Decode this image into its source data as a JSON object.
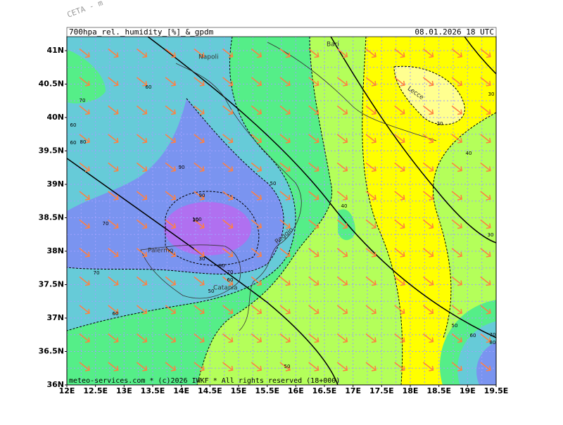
{
  "header": {
    "model": "CETA - m",
    "title": "700hpa_rel._humidity_[%]_&_gpdm",
    "valid": "08.01.2026 18 UTC"
  },
  "x_axis": {
    "labels": [
      "12E",
      "12.5E",
      "13E",
      "13.5E",
      "14E",
      "14.5E",
      "15E",
      "15.5E",
      "16E",
      "16.5E",
      "17E",
      "17.5E",
      "18E",
      "18.5E",
      "19E",
      "19.5E"
    ]
  },
  "y_axis": {
    "labels": [
      "41N",
      "40.5N",
      "40N",
      "39.5N",
      "39N",
      "38.5N",
      "38N",
      "37.5N",
      "37N",
      "36.5N",
      "36N"
    ]
  },
  "cities": [
    "Napoli",
    "Bari",
    "Lecce",
    "Palermo",
    "Catania",
    "Reggio"
  ],
  "contour_labels": [
    "60",
    "70",
    "60",
    "60",
    "80",
    "90",
    "70",
    "90",
    "100",
    "50",
    "40",
    "30",
    "80",
    "70",
    "60",
    "70",
    "60",
    "50",
    "50",
    "30",
    "20",
    "30",
    "40",
    "30",
    "50",
    "60",
    "70",
    "80"
  ],
  "footer": "meteo-services.com * (c)2026 IWKF * All rights reserved (18+000)"
}
